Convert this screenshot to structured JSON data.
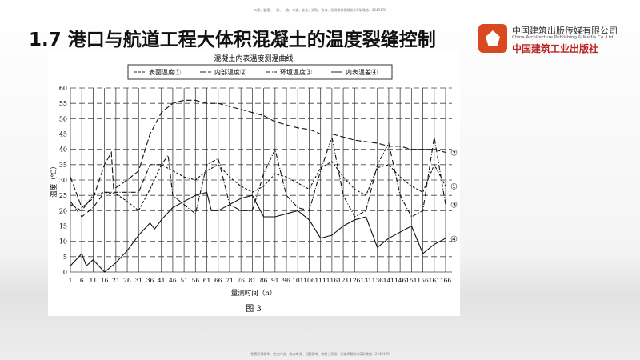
{
  "watermark_top": "二建、监理、一建、一造、二造、安全、消防、咨询、检测课程视频联系QQ/微信：2649178",
  "watermark_bottom": "免费获得精华、完全内训、考点串讲、习题模考、考前三页纸、池课押题联系QQ/微信：2649178",
  "slide_title": "1.7 港口与航道工程大体积混凝土的温度裂缝控制",
  "logo": {
    "line1": "中国建筑出版传媒有限公司",
    "line2": "China Architecture Publishing & Media Co.,Ltd",
    "line3": "中国建筑工业出版社",
    "color": "#d9481f"
  },
  "chart_data": {
    "type": "line",
    "title": "混凝土内表温度测温曲线",
    "xlabel": "量测时间（h）",
    "ylabel": "温度（℃）",
    "caption": "图 3",
    "xlim": [
      1,
      166
    ],
    "ylim": [
      0,
      60
    ],
    "xticks": [
      1,
      6,
      11,
      16,
      21,
      26,
      31,
      36,
      41,
      46,
      51,
      56,
      61,
      66,
      71,
      76,
      81,
      86,
      91,
      96,
      101,
      106,
      111,
      116,
      121,
      126,
      131,
      136,
      141,
      146,
      151,
      156,
      161,
      166
    ],
    "yticks": [
      0,
      5,
      10,
      15,
      20,
      25,
      30,
      35,
      40,
      45,
      50,
      55,
      60
    ],
    "grid": true,
    "legend": "top",
    "series": [
      {
        "name": "表面温度①",
        "label": "①",
        "style": "dash-short",
        "x": [
          1,
          6,
          11,
          16,
          21,
          26,
          31,
          36,
          41,
          46,
          51,
          56,
          61,
          66,
          71,
          76,
          81,
          86,
          91,
          96,
          101,
          106,
          111,
          116,
          121,
          126,
          131,
          136,
          141,
          146,
          151,
          156,
          161,
          166
        ],
        "y": [
          22,
          20,
          25,
          26,
          25.5,
          23,
          20,
          27,
          35,
          33,
          31,
          30,
          33,
          35,
          31,
          28,
          26,
          28,
          32,
          31,
          29,
          27,
          34,
          36,
          31,
          27,
          25,
          34,
          35,
          31,
          28,
          26,
          35,
          28
        ]
      },
      {
        "name": "内部温度②",
        "label": "②",
        "style": "dash-long",
        "x": [
          1,
          6,
          11,
          16,
          19,
          20,
          26,
          31,
          36,
          41,
          46,
          51,
          56,
          61,
          66,
          71,
          76,
          81,
          86,
          91,
          96,
          101,
          106,
          111,
          116,
          121,
          126,
          131,
          136,
          141,
          146,
          151,
          156,
          161,
          166
        ],
        "y": [
          31,
          21,
          24,
          35,
          39,
          27,
          30,
          33,
          45,
          52,
          55,
          56,
          56,
          55,
          55,
          54,
          53,
          52,
          51,
          49,
          48,
          47,
          46.5,
          45,
          45,
          44,
          43,
          42.5,
          42,
          41,
          41,
          40,
          40,
          40,
          39
        ]
      },
      {
        "name": "环境温度③",
        "label": "③",
        "style": "dash-dot",
        "x": [
          1,
          6,
          11,
          16,
          21,
          26,
          31,
          36,
          41,
          44,
          46,
          51,
          56,
          61,
          66,
          71,
          76,
          81,
          86,
          91,
          96,
          101,
          106,
          111,
          116,
          121,
          126,
          131,
          136,
          141,
          146,
          151,
          156,
          161,
          166
        ],
        "y": [
          23,
          18,
          21,
          26,
          26,
          26,
          26,
          35,
          35,
          38,
          25,
          22,
          19,
          35,
          37,
          22,
          20,
          20,
          32,
          40,
          25,
          21,
          20,
          33,
          44,
          25,
          18,
          20,
          35,
          42,
          25,
          18,
          20,
          44,
          22
        ]
      },
      {
        "name": "内表温差④",
        "label": "④",
        "style": "solid",
        "x": [
          1,
          6,
          8,
          11,
          16,
          21,
          26,
          31,
          36,
          38,
          41,
          46,
          51,
          56,
          61,
          63,
          66,
          71,
          76,
          81,
          86,
          91,
          96,
          101,
          106,
          111,
          116,
          121,
          126,
          131,
          136,
          141,
          146,
          151,
          156,
          161,
          166
        ],
        "y": [
          2,
          6,
          2,
          4,
          0,
          3,
          7,
          12,
          16,
          14,
          17,
          21,
          23,
          25,
          26,
          20,
          20,
          22,
          24,
          25,
          18,
          18,
          19,
          20,
          17,
          11,
          12,
          15,
          17,
          18,
          8,
          11,
          13,
          15,
          6,
          9,
          11
        ]
      }
    ]
  }
}
